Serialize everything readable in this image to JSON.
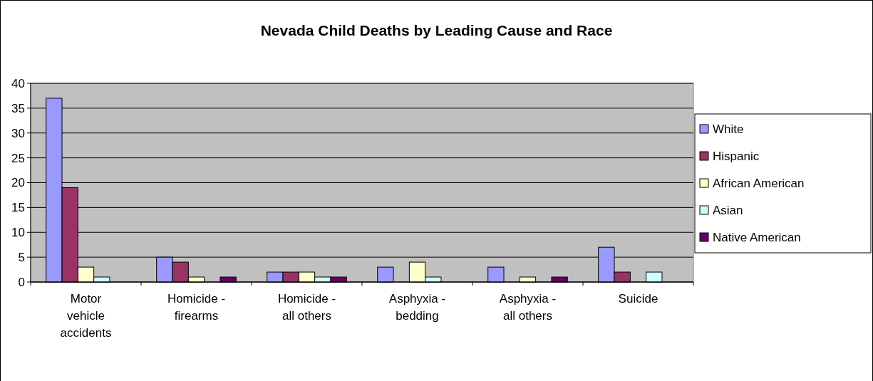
{
  "chart_data": {
    "type": "bar",
    "title": "Nevada Child Deaths by Leading Cause and Race",
    "categories": [
      "Motor vehicle accidents",
      "Homicide - firearms",
      "Homicide - all others",
      "Asphyxia - bedding",
      "Asphyxia - all others",
      "Suicide"
    ],
    "series": [
      {
        "name": "White",
        "color": "#9999ff",
        "values": [
          37,
          5,
          2,
          3,
          3,
          7
        ]
      },
      {
        "name": "Hispanic",
        "color": "#993366",
        "values": [
          19,
          4,
          2,
          0,
          0,
          2
        ]
      },
      {
        "name": "African American",
        "color": "#ffffcc",
        "values": [
          3,
          1,
          2,
          4,
          1,
          0
        ]
      },
      {
        "name": "Asian",
        "color": "#ccffff",
        "values": [
          1,
          0,
          1,
          1,
          0,
          2
        ]
      },
      {
        "name": "Native American",
        "color": "#660066",
        "values": [
          0,
          1,
          1,
          0,
          1,
          0
        ]
      }
    ],
    "ylim": [
      0,
      40
    ],
    "yticks": [
      0,
      5,
      10,
      15,
      20,
      25,
      30,
      35,
      40
    ],
    "grid": "y",
    "legend": "right"
  }
}
